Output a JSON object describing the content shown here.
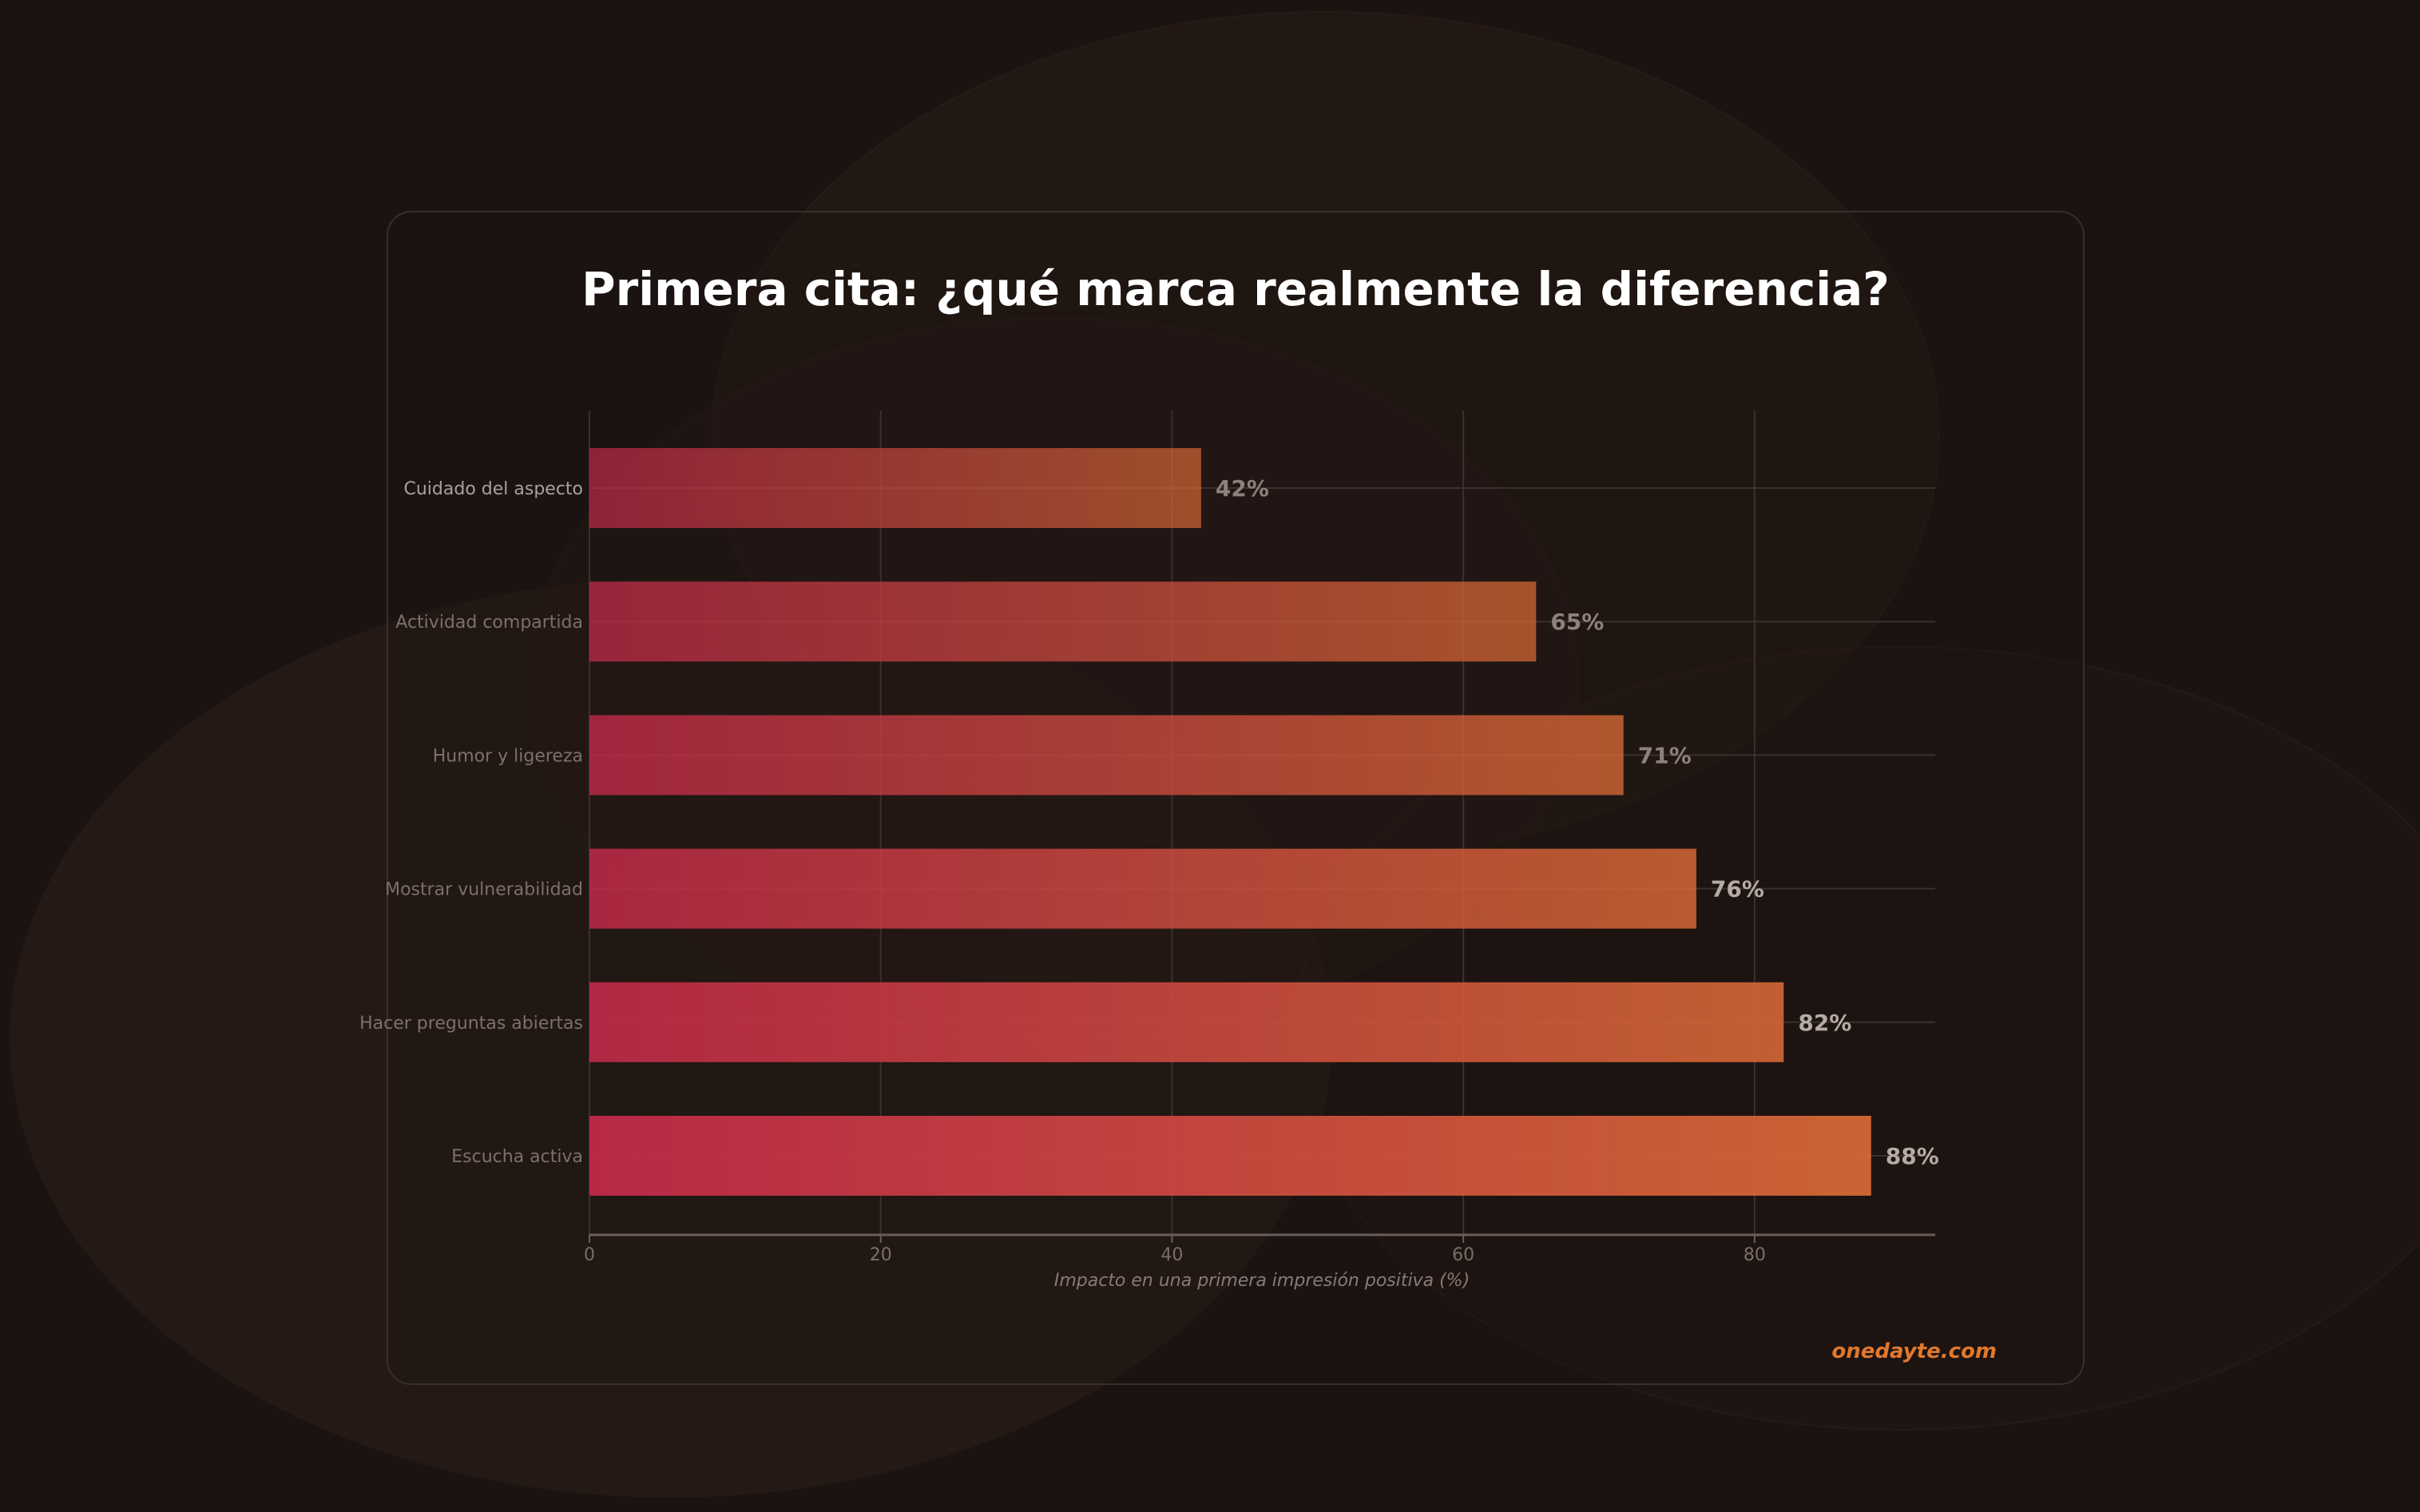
{
  "chart_data": {
    "type": "bar",
    "orientation": "horizontal",
    "title": "Primera cita: ¿qué marca realmente la diferencia?",
    "xlabel": "Impacto en una primera impresión positiva (%)",
    "ylabel": "",
    "categories": [
      "Cuidado del aspecto",
      "Actividad compartida",
      "Humor y ligereza",
      "Mostrar vulnerabilidad",
      "Hacer preguntas abiertas",
      "Escucha activa"
    ],
    "values": [
      42,
      65,
      71,
      76,
      82,
      88
    ],
    "value_labels": [
      "42%",
      "65%",
      "71%",
      "76%",
      "82%",
      "88%"
    ],
    "xlim": [
      0,
      92.4
    ],
    "xticks": [
      0,
      20,
      40,
      60,
      80
    ],
    "xtick_labels": [
      "0",
      "20",
      "40",
      "60",
      "80"
    ],
    "grid": true,
    "colors": {
      "bar_start": "#c42a4a",
      "bar_end": "#d86a36",
      "background": "#1a1311",
      "title": "#ffffff",
      "watermark": "#e0782e"
    }
  },
  "watermark": "onedayte.com"
}
